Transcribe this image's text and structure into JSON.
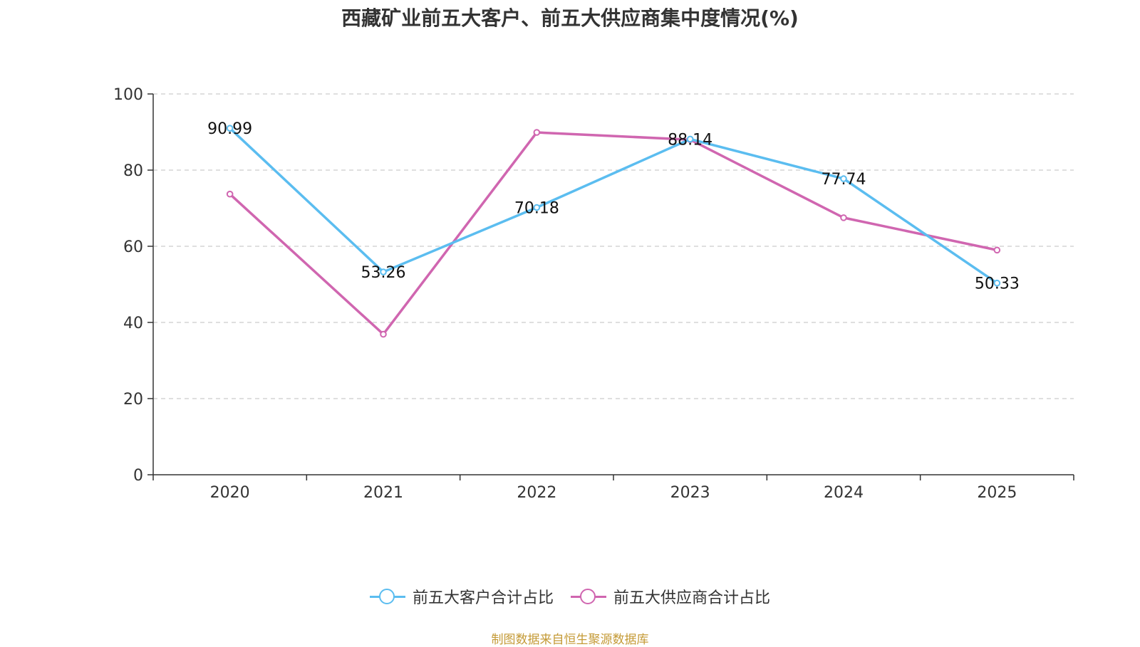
{
  "chart_data": {
    "type": "line",
    "title": "西藏矿业前五大客户、前五大供应商集中度情况(%)",
    "categories": [
      "2020",
      "2021",
      "2022",
      "2023",
      "2024",
      "2025"
    ],
    "series": [
      {
        "name": "前五大客户合计占比",
        "color": "#5bbdf0",
        "values": [
          90.99,
          53.26,
          70.18,
          88.14,
          77.74,
          50.33
        ],
        "labels": [
          "90.99",
          "53.26",
          "70.18",
          "88.14",
          "77.74",
          "50.33"
        ]
      },
      {
        "name": "前五大供应商合计占比",
        "color": "#d066b0",
        "values": [
          73.7,
          36.9,
          89.9,
          88.0,
          67.5,
          59.0
        ]
      }
    ],
    "yticks": [
      "0",
      "20",
      "40",
      "60",
      "80",
      "100"
    ],
    "ylim": [
      0,
      100
    ],
    "grid": true,
    "legend": "bottom-center",
    "source": "制图数据来自恒生聚源数据库"
  }
}
